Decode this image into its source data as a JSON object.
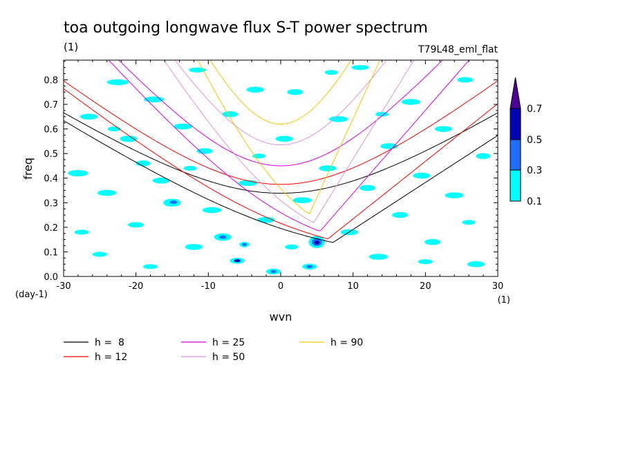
{
  "chart_data": {
    "type": "contour",
    "title": "toa outgoing longwave flux S-T power spectrum",
    "subtitle_left": "(1)",
    "subtitle_right": "T79L48_eml_flat",
    "xlabel": "wvn",
    "ylabel": "freq",
    "x_unit": "(1)",
    "y_unit": "(day-1)",
    "xlim": [
      -30,
      30
    ],
    "ylim": [
      0,
      0.88
    ],
    "x_ticks": [
      -30,
      -20,
      -10,
      0,
      10,
      20,
      30
    ],
    "x_tick_labels": [
      "-30",
      "-20",
      "-10",
      "0",
      "10",
      "20",
      "30"
    ],
    "y_ticks": [
      0,
      0.1,
      0.2,
      0.3,
      0.4,
      0.5,
      0.6,
      0.7,
      0.8
    ],
    "y_tick_labels": [
      "0.0",
      "0.1",
      "0.2",
      "0.3",
      "0.4",
      "0.5",
      "0.6",
      "0.7",
      "0.8"
    ],
    "colorbar": {
      "levels": [
        "0.1",
        "0.3",
        "0.5",
        "0.7"
      ],
      "colors": [
        "#00ffff",
        "#1e6eff",
        "#0000b4",
        "#4b0096"
      ]
    },
    "dispersion_curves": [
      {
        "label": "h =  8",
        "h": 8,
        "color": "#000000"
      },
      {
        "label": "h = 12",
        "h": 12,
        "color": "#ff0000"
      },
      {
        "label": "h = 25",
        "h": 25,
        "color": "#dc00dc"
      },
      {
        "label": "h = 50",
        "h": 50,
        "color": "#dc96dc"
      },
      {
        "label": "h = 90",
        "h": 90,
        "color": "#f0c800"
      }
    ],
    "blobs": [
      {
        "x": -28.0,
        "y": 0.42,
        "rx": 1.4,
        "ry": 0.013,
        "level": 0
      },
      {
        "x": -26.5,
        "y": 0.65,
        "rx": 1.2,
        "ry": 0.012,
        "level": 0
      },
      {
        "x": -25.0,
        "y": 0.09,
        "rx": 1.0,
        "ry": 0.01,
        "level": 0
      },
      {
        "x": -24.0,
        "y": 0.34,
        "rx": 1.3,
        "ry": 0.012,
        "level": 0
      },
      {
        "x": -22.5,
        "y": 0.79,
        "rx": 1.5,
        "ry": 0.012,
        "level": 0
      },
      {
        "x": -21.0,
        "y": 0.56,
        "rx": 1.2,
        "ry": 0.013,
        "level": 0
      },
      {
        "x": -20.0,
        "y": 0.21,
        "rx": 1.1,
        "ry": 0.011,
        "level": 0
      },
      {
        "x": -19.0,
        "y": 0.46,
        "rx": 1.0,
        "ry": 0.012,
        "level": 0
      },
      {
        "x": -17.5,
        "y": 0.72,
        "rx": 1.4,
        "ry": 0.012,
        "level": 0
      },
      {
        "x": -16.5,
        "y": 0.39,
        "rx": 1.2,
        "ry": 0.012,
        "level": 0
      },
      {
        "x": -15.0,
        "y": 0.3,
        "rx": 1.2,
        "ry": 0.016,
        "level": 0
      },
      {
        "x": -14.8,
        "y": 0.302,
        "rx": 0.5,
        "ry": 0.007,
        "level": 1
      },
      {
        "x": -13.5,
        "y": 0.61,
        "rx": 1.3,
        "ry": 0.012,
        "level": 0
      },
      {
        "x": -12.0,
        "y": 0.12,
        "rx": 1.2,
        "ry": 0.012,
        "level": 0
      },
      {
        "x": -11.5,
        "y": 0.84,
        "rx": 1.2,
        "ry": 0.01,
        "level": 0
      },
      {
        "x": -10.5,
        "y": 0.51,
        "rx": 1.1,
        "ry": 0.012,
        "level": 0
      },
      {
        "x": -9.5,
        "y": 0.27,
        "rx": 1.3,
        "ry": 0.012,
        "level": 0
      },
      {
        "x": -8.0,
        "y": 0.16,
        "rx": 1.2,
        "ry": 0.015,
        "level": 0
      },
      {
        "x": -8.0,
        "y": 0.16,
        "rx": 0.5,
        "ry": 0.007,
        "level": 1
      },
      {
        "x": -7.0,
        "y": 0.66,
        "rx": 1.1,
        "ry": 0.012,
        "level": 0
      },
      {
        "x": -6.0,
        "y": 0.064,
        "rx": 1.0,
        "ry": 0.012,
        "level": 0
      },
      {
        "x": -6.0,
        "y": 0.064,
        "rx": 0.45,
        "ry": 0.006,
        "level": 2
      },
      {
        "x": -5.0,
        "y": 0.13,
        "rx": 0.7,
        "ry": 0.011,
        "level": 0
      },
      {
        "x": -5.0,
        "y": 0.13,
        "rx": 0.35,
        "ry": 0.006,
        "level": 1
      },
      {
        "x": -4.5,
        "y": 0.38,
        "rx": 1.3,
        "ry": 0.012,
        "level": 0
      },
      {
        "x": -3.5,
        "y": 0.76,
        "rx": 1.2,
        "ry": 0.012,
        "level": 0
      },
      {
        "x": -2.0,
        "y": 0.23,
        "rx": 1.2,
        "ry": 0.012,
        "level": 0
      },
      {
        "x": -1.0,
        "y": 0.02,
        "rx": 1.0,
        "ry": 0.012,
        "level": 0
      },
      {
        "x": -1.0,
        "y": 0.02,
        "rx": 0.4,
        "ry": 0.006,
        "level": 1
      },
      {
        "x": 0.5,
        "y": 0.56,
        "rx": 1.2,
        "ry": 0.012,
        "level": 0
      },
      {
        "x": 2.0,
        "y": 0.75,
        "rx": 1.1,
        "ry": 0.012,
        "level": 0
      },
      {
        "x": 3.0,
        "y": 0.31,
        "rx": 1.3,
        "ry": 0.012,
        "level": 0
      },
      {
        "x": 4.0,
        "y": 0.04,
        "rx": 1.0,
        "ry": 0.012,
        "level": 0
      },
      {
        "x": 4.0,
        "y": 0.04,
        "rx": 0.45,
        "ry": 0.006,
        "level": 1
      },
      {
        "x": 5.0,
        "y": 0.14,
        "rx": 1.1,
        "ry": 0.025,
        "level": 0
      },
      {
        "x": 5.0,
        "y": 0.14,
        "rx": 0.7,
        "ry": 0.016,
        "level": 1
      },
      {
        "x": 5.0,
        "y": 0.138,
        "rx": 0.35,
        "ry": 0.008,
        "level": 2
      },
      {
        "x": 6.5,
        "y": 0.44,
        "rx": 1.2,
        "ry": 0.012,
        "level": 0
      },
      {
        "x": 8.0,
        "y": 0.64,
        "rx": 1.3,
        "ry": 0.012,
        "level": 0
      },
      {
        "x": 9.5,
        "y": 0.18,
        "rx": 1.2,
        "ry": 0.012,
        "level": 0
      },
      {
        "x": 11.0,
        "y": 0.85,
        "rx": 1.2,
        "ry": 0.01,
        "level": 0
      },
      {
        "x": 12.0,
        "y": 0.36,
        "rx": 1.1,
        "ry": 0.012,
        "level": 0
      },
      {
        "x": 13.5,
        "y": 0.08,
        "rx": 1.3,
        "ry": 0.012,
        "level": 0
      },
      {
        "x": 15.0,
        "y": 0.53,
        "rx": 1.2,
        "ry": 0.012,
        "level": 0
      },
      {
        "x": 16.5,
        "y": 0.25,
        "rx": 1.1,
        "ry": 0.012,
        "level": 0
      },
      {
        "x": 18.0,
        "y": 0.71,
        "rx": 1.3,
        "ry": 0.012,
        "level": 0
      },
      {
        "x": 19.5,
        "y": 0.41,
        "rx": 1.2,
        "ry": 0.012,
        "level": 0
      },
      {
        "x": 21.0,
        "y": 0.14,
        "rx": 1.1,
        "ry": 0.012,
        "level": 0
      },
      {
        "x": 22.5,
        "y": 0.6,
        "rx": 1.2,
        "ry": 0.012,
        "level": 0
      },
      {
        "x": 24.0,
        "y": 0.33,
        "rx": 1.3,
        "ry": 0.012,
        "level": 0
      },
      {
        "x": 25.5,
        "y": 0.8,
        "rx": 1.1,
        "ry": 0.011,
        "level": 0
      },
      {
        "x": 27.0,
        "y": 0.05,
        "rx": 1.2,
        "ry": 0.012,
        "level": 0
      },
      {
        "x": 28.0,
        "y": 0.49,
        "rx": 1.0,
        "ry": 0.012,
        "level": 0
      },
      {
        "x": -27.5,
        "y": 0.18,
        "rx": 1.0,
        "ry": 0.01,
        "level": 0
      },
      {
        "x": -23.0,
        "y": 0.6,
        "rx": 0.9,
        "ry": 0.01,
        "level": 0
      },
      {
        "x": -18.0,
        "y": 0.04,
        "rx": 1.0,
        "ry": 0.01,
        "level": 0
      },
      {
        "x": -12.5,
        "y": 0.44,
        "rx": 0.9,
        "ry": 0.01,
        "level": 0
      },
      {
        "x": -3.0,
        "y": 0.49,
        "rx": 0.9,
        "ry": 0.01,
        "level": 0
      },
      {
        "x": 1.5,
        "y": 0.12,
        "rx": 0.9,
        "ry": 0.01,
        "level": 0
      },
      {
        "x": 7.0,
        "y": 0.83,
        "rx": 0.9,
        "ry": 0.01,
        "level": 0
      },
      {
        "x": 14.0,
        "y": 0.66,
        "rx": 0.9,
        "ry": 0.01,
        "level": 0
      },
      {
        "x": 20.0,
        "y": 0.06,
        "rx": 1.0,
        "ry": 0.01,
        "level": 0
      },
      {
        "x": 26.0,
        "y": 0.22,
        "rx": 0.9,
        "ry": 0.01,
        "level": 0
      }
    ]
  }
}
